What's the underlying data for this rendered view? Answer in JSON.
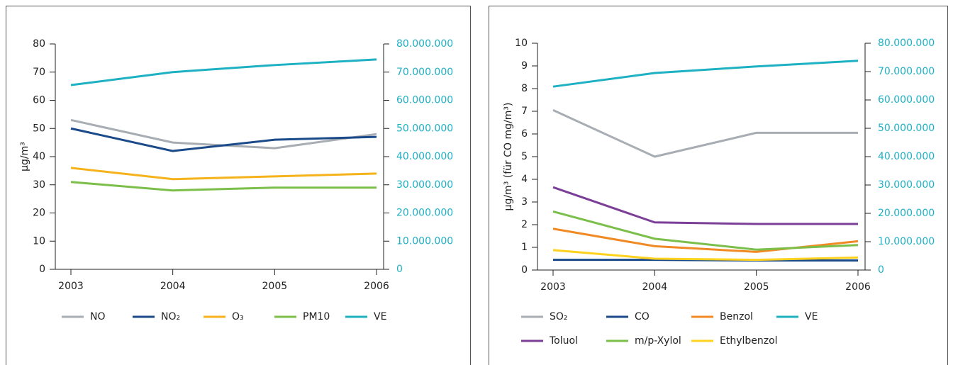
{
  "chart_data": [
    {
      "type": "line",
      "ylabel": "µg/m³",
      "categories": [
        "2003",
        "2004",
        "2005",
        "2006"
      ],
      "ylim": [
        0,
        80
      ],
      "yticks": [
        0,
        10,
        20,
        30,
        40,
        50,
        60,
        70,
        80
      ],
      "y2lim": [
        0,
        80000000
      ],
      "y2ticks": [
        0,
        {
          "value": 10000000,
          "label": "10.000.000"
        },
        {
          "value": 20000000,
          "label": "20.000.000"
        },
        {
          "value": 30000000,
          "label": "30.000.000"
        },
        {
          "value": 40000000,
          "label": "40.000.000"
        },
        {
          "value": 50000000,
          "label": "50.000.000"
        },
        {
          "value": 60000000,
          "label": "60.000.000"
        },
        {
          "value": 70000000,
          "label": "70.000.000"
        },
        {
          "value": 80000000,
          "label": "80.000.000"
        }
      ],
      "y2color": "#1eb0c3",
      "series": [
        {
          "name": "NO",
          "color": "#a7adb3",
          "values": [
            53,
            45,
            43,
            48
          ]
        },
        {
          "name": "NO₂",
          "color": "#1a4a8a",
          "values": [
            50,
            42,
            46,
            47
          ]
        },
        {
          "name": "O₃",
          "color": "#f5b21b",
          "values": [
            36,
            32,
            33,
            34
          ]
        },
        {
          "name": "PM10",
          "color": "#7bbf4a",
          "values": [
            31,
            28,
            29,
            29
          ]
        },
        {
          "name": "VE",
          "color": "#1eb0c3",
          "axis": "y2",
          "values": [
            65400000,
            70000000,
            72500000,
            74500000
          ]
        }
      ]
    },
    {
      "type": "line",
      "ylabel": "µg/m³ (für CO mg/m³)",
      "categories": [
        "2003",
        "2004",
        "2005",
        "2006"
      ],
      "ylim": [
        0,
        10
      ],
      "yticks": [
        0,
        1,
        2,
        3,
        4,
        5,
        6,
        7,
        8,
        9,
        10
      ],
      "y2lim": [
        0,
        80000000
      ],
      "y2ticks": [
        0,
        {
          "value": 10000000,
          "label": "10.000.000"
        },
        {
          "value": 20000000,
          "label": "20.000.000"
        },
        {
          "value": 30000000,
          "label": "30.000.000"
        },
        {
          "value": 40000000,
          "label": "40.000.000"
        },
        {
          "value": 50000000,
          "label": "50.000.000"
        },
        {
          "value": 60000000,
          "label": "60.000.000"
        },
        {
          "value": 70000000,
          "label": "70.000.000"
        },
        {
          "value": 80000000,
          "label": "80.000.000"
        }
      ],
      "y2color": "#1eb0c3",
      "series": [
        {
          "name": "SO₂",
          "color": "#a7adb3",
          "values": [
            7.05,
            5,
            6.05,
            6.05
          ]
        },
        {
          "name": "CO",
          "color": "#1a4a8a",
          "values": [
            0.45,
            0.45,
            0.42,
            0.42
          ]
        },
        {
          "name": "Benzol",
          "color": "#f08a24",
          "values": [
            1.82,
            1.05,
            0.8,
            1.27
          ]
        },
        {
          "name": "VE",
          "color": "#1eb0c3",
          "axis": "y2",
          "values": [
            64700000,
            69500000,
            71800000,
            73800000
          ]
        },
        {
          "name": "Toluol",
          "color": "#7b3f98",
          "values": [
            3.65,
            2.1,
            2.03,
            2.03
          ]
        },
        {
          "name": "m/p-Xylol",
          "color": "#7bbf4a",
          "values": [
            2.58,
            1.38,
            0.9,
            1.1
          ]
        },
        {
          "name": "Ethylbenzol",
          "color": "#ffd21f",
          "values": [
            0.88,
            0.5,
            0.45,
            0.55
          ]
        }
      ]
    }
  ]
}
